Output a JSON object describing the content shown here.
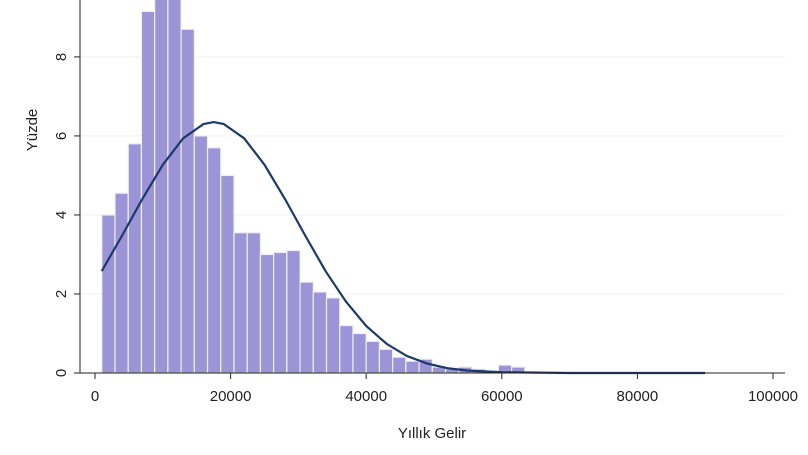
{
  "chart_data": {
    "type": "histogram",
    "y_label": "Yüzde",
    "x_label": "Yıllık Gelir",
    "bins": [
      1000,
      2950,
      4900,
      6850,
      8800,
      10750,
      12700,
      14650,
      16600,
      18550,
      20500,
      22450,
      24400,
      26350,
      28300,
      30250,
      32200,
      34150,
      36100,
      38050,
      40000,
      41950,
      43900,
      45850,
      47800,
      49750,
      51700,
      53650,
      55600,
      57550,
      59500,
      61450,
      63400
    ],
    "values": [
      4.0,
      4.55,
      5.8,
      9.15,
      9.8,
      9.7,
      8.7,
      6.0,
      5.7,
      5.0,
      3.55,
      3.55,
      3.0,
      3.05,
      3.1,
      2.3,
      2.05,
      1.9,
      1.2,
      1.0,
      0.8,
      0.6,
      0.4,
      0.3,
      0.35,
      0.15,
      0.1,
      0.15,
      0.1,
      0.05,
      0.2,
      0.15
    ],
    "color": "#9b94d6",
    "line": {
      "type": "line",
      "color": "#1b3a6b",
      "x": [
        1000,
        4000,
        7000,
        10000,
        13000,
        16000,
        17500,
        19000,
        22000,
        25000,
        28000,
        31000,
        34000,
        37000,
        40000,
        43000,
        46000,
        49000,
        52000,
        55000,
        60000,
        70000,
        80000,
        90000
      ],
      "values": [
        2.58,
        3.48,
        4.41,
        5.27,
        5.94,
        6.3,
        6.35,
        6.3,
        5.94,
        5.27,
        4.41,
        3.48,
        2.58,
        1.81,
        1.19,
        0.74,
        0.43,
        0.24,
        0.12,
        0.06,
        0.02,
        0,
        0,
        0
      ]
    },
    "xlim": [
      0,
      100000
    ],
    "xticks": [
      0,
      20000,
      40000,
      60000,
      80000,
      100000
    ],
    "ylim": [
      0,
      9.44
    ],
    "yticks": [
      0,
      2,
      4,
      6,
      8
    ],
    "grid": true
  }
}
